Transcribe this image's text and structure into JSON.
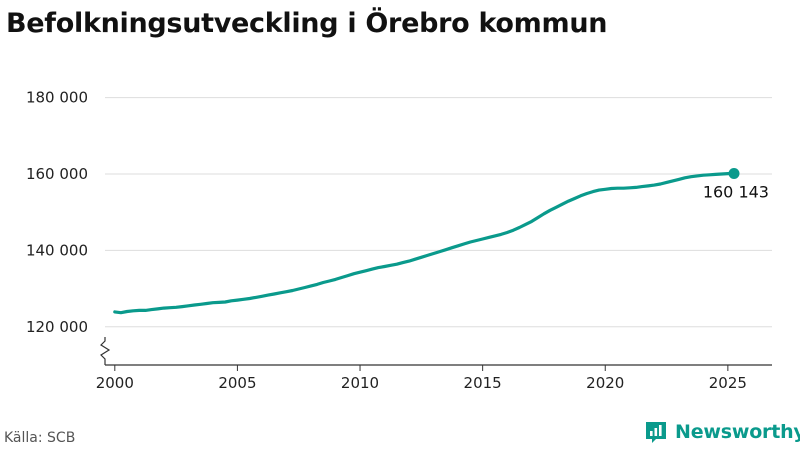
{
  "title": "Befolkningsutveckling i Örebro kommun",
  "source": "Källa: SCB",
  "brand": "Newsworthy",
  "colors": {
    "line": "#0a9a8c",
    "grid": "#dddddd",
    "axis": "#333333",
    "brand": "#0a9a8c"
  },
  "chart_data": {
    "type": "line",
    "title": "Befolkningsutveckling i Örebro kommun",
    "xlabel": "",
    "ylabel": "",
    "xlim": [
      1999.6,
      2026.8
    ],
    "ylim": [
      110000,
      182000
    ],
    "y_axis_break": true,
    "grid": "horizontal",
    "x_ticks": [
      2000,
      2005,
      2010,
      2015,
      2020,
      2025
    ],
    "y_ticks": [
      120000,
      140000,
      160000,
      180000
    ],
    "y_tick_labels": [
      "120 000",
      "140 000",
      "160 000",
      "180 000"
    ],
    "end_label": "160 143",
    "series": [
      {
        "values": [
          [
            2000.0,
            123900
          ],
          [
            2000.25,
            123700
          ],
          [
            2000.5,
            124000
          ],
          [
            2000.75,
            124200
          ],
          [
            2001.0,
            124300
          ],
          [
            2001.25,
            124300
          ],
          [
            2001.5,
            124500
          ],
          [
            2001.75,
            124700
          ],
          [
            2002.0,
            124900
          ],
          [
            2002.25,
            125000
          ],
          [
            2002.5,
            125100
          ],
          [
            2002.75,
            125300
          ],
          [
            2003.0,
            125500
          ],
          [
            2003.25,
            125700
          ],
          [
            2003.5,
            125900
          ],
          [
            2003.75,
            126100
          ],
          [
            2004.0,
            126300
          ],
          [
            2004.25,
            126400
          ],
          [
            2004.5,
            126500
          ],
          [
            2004.75,
            126800
          ],
          [
            2005.0,
            127000
          ],
          [
            2005.25,
            127200
          ],
          [
            2005.5,
            127400
          ],
          [
            2005.75,
            127700
          ],
          [
            2006.0,
            128000
          ],
          [
            2006.25,
            128300
          ],
          [
            2006.5,
            128600
          ],
          [
            2006.75,
            128900
          ],
          [
            2007.0,
            129200
          ],
          [
            2007.25,
            129500
          ],
          [
            2007.5,
            129900
          ],
          [
            2007.75,
            130300
          ],
          [
            2008.0,
            130700
          ],
          [
            2008.25,
            131100
          ],
          [
            2008.5,
            131600
          ],
          [
            2008.75,
            132000
          ],
          [
            2009.0,
            132400
          ],
          [
            2009.25,
            132900
          ],
          [
            2009.5,
            133400
          ],
          [
            2009.75,
            133900
          ],
          [
            2010.0,
            134300
          ],
          [
            2010.25,
            134700
          ],
          [
            2010.5,
            135100
          ],
          [
            2010.75,
            135500
          ],
          [
            2011.0,
            135800
          ],
          [
            2011.25,
            136100
          ],
          [
            2011.5,
            136400
          ],
          [
            2011.75,
            136800
          ],
          [
            2012.0,
            137200
          ],
          [
            2012.25,
            137700
          ],
          [
            2012.5,
            138200
          ],
          [
            2012.75,
            138700
          ],
          [
            2013.0,
            139200
          ],
          [
            2013.25,
            139700
          ],
          [
            2013.5,
            140200
          ],
          [
            2013.75,
            140700
          ],
          [
            2014.0,
            141200
          ],
          [
            2014.25,
            141700
          ],
          [
            2014.5,
            142200
          ],
          [
            2014.75,
            142600
          ],
          [
            2015.0,
            143000
          ],
          [
            2015.25,
            143400
          ],
          [
            2015.5,
            143800
          ],
          [
            2015.75,
            144200
          ],
          [
            2016.0,
            144700
          ],
          [
            2016.25,
            145300
          ],
          [
            2016.5,
            146000
          ],
          [
            2016.75,
            146800
          ],
          [
            2017.0,
            147600
          ],
          [
            2017.25,
            148600
          ],
          [
            2017.5,
            149600
          ],
          [
            2017.75,
            150500
          ],
          [
            2018.0,
            151300
          ],
          [
            2018.25,
            152100
          ],
          [
            2018.5,
            152900
          ],
          [
            2018.75,
            153600
          ],
          [
            2019.0,
            154300
          ],
          [
            2019.25,
            154900
          ],
          [
            2019.5,
            155400
          ],
          [
            2019.75,
            155800
          ],
          [
            2020.0,
            156000
          ],
          [
            2020.25,
            156200
          ],
          [
            2020.5,
            156300
          ],
          [
            2020.75,
            156300
          ],
          [
            2021.0,
            156400
          ],
          [
            2021.25,
            156500
          ],
          [
            2021.5,
            156700
          ],
          [
            2021.75,
            156900
          ],
          [
            2022.0,
            157100
          ],
          [
            2022.25,
            157400
          ],
          [
            2022.5,
            157800
          ],
          [
            2022.75,
            158200
          ],
          [
            2023.0,
            158600
          ],
          [
            2023.25,
            159000
          ],
          [
            2023.5,
            159300
          ],
          [
            2023.75,
            159500
          ],
          [
            2024.0,
            159700
          ],
          [
            2024.25,
            159800
          ],
          [
            2024.5,
            159900
          ],
          [
            2024.75,
            160000
          ],
          [
            2025.0,
            160100
          ],
          [
            2025.25,
            160143
          ]
        ]
      }
    ]
  }
}
